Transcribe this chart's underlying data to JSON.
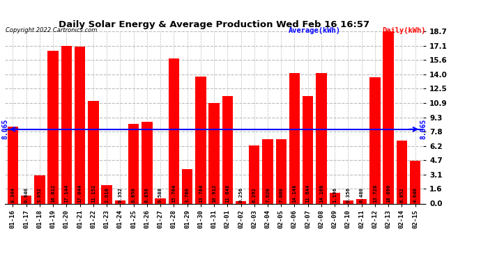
{
  "title": "Daily Solar Energy & Average Production Wed Feb 16 16:57",
  "copyright": "Copyright 2022 Cartronics.com",
  "legend_average": "Average(kWh)",
  "legend_daily": "Daily(kWh)",
  "average_value": 8.065,
  "categories": [
    "01-16",
    "01-17",
    "01-18",
    "01-19",
    "01-20",
    "01-21",
    "01-22",
    "01-23",
    "01-24",
    "01-25",
    "01-26",
    "01-27",
    "01-28",
    "01-29",
    "01-30",
    "01-31",
    "02-01",
    "02-02",
    "02-03",
    "02-04",
    "02-05",
    "02-06",
    "02-07",
    "02-08",
    "02-09",
    "02-10",
    "02-11",
    "02-12",
    "02-13",
    "02-14",
    "02-15"
  ],
  "values": [
    8.344,
    0.84,
    3.052,
    16.612,
    17.144,
    17.044,
    11.152,
    2.016,
    0.352,
    8.656,
    8.856,
    0.588,
    15.764,
    3.76,
    13.784,
    10.912,
    11.648,
    0.256,
    6.292,
    7.02,
    7.0,
    14.148,
    11.644,
    14.168,
    1.196,
    0.356,
    0.48,
    13.728,
    18.696,
    6.852,
    4.64
  ],
  "bar_color": "#ff0000",
  "avg_line_color": "#0000ff",
  "background_color": "#ffffff",
  "grid_color": "#bbbbbb",
  "title_color": "#000000",
  "ylim_max": 18.7,
  "yticks": [
    0.0,
    1.6,
    3.1,
    4.7,
    6.2,
    7.8,
    9.3,
    10.9,
    12.5,
    14.0,
    15.6,
    17.1,
    18.7
  ],
  "bar_label_fontsize": 5.2,
  "avg_label": "8.065"
}
